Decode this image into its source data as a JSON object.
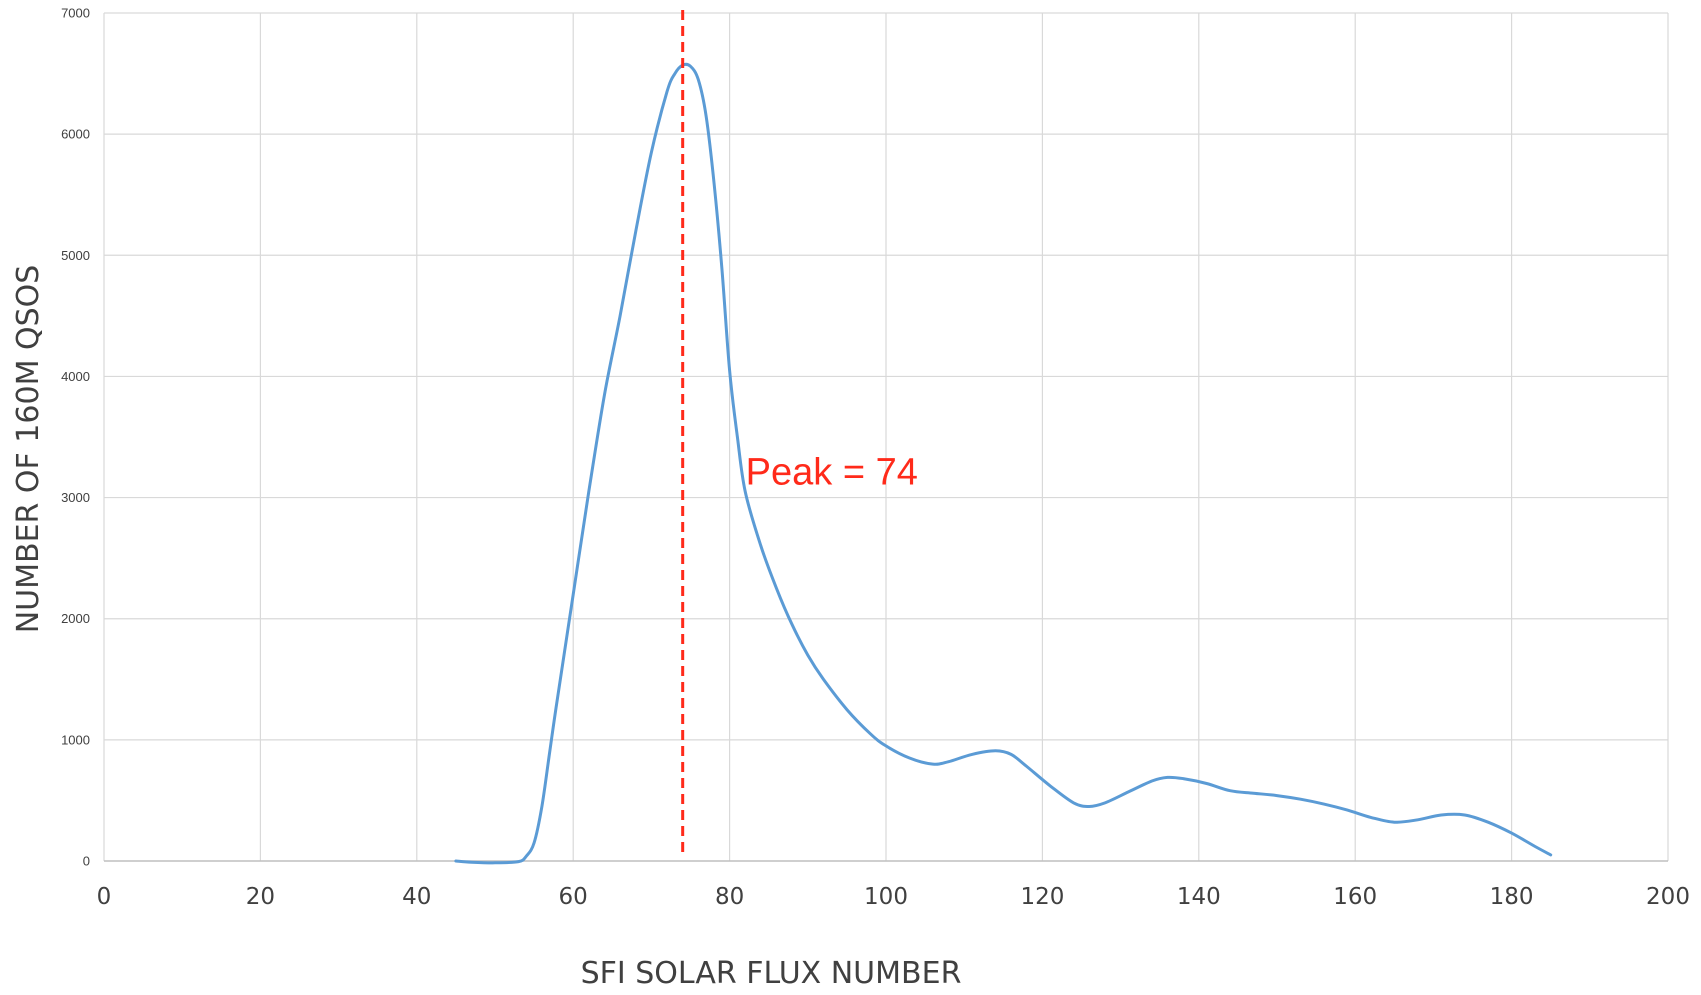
{
  "chart_data": {
    "type": "line",
    "title": "",
    "xlabel": "SFI SOLAR FLUX NUMBER",
    "ylabel": "NUMBER OF 160M QSOS",
    "xlim": [
      0,
      200
    ],
    "ylim": [
      0,
      7000
    ],
    "x_ticks": [
      0,
      20,
      40,
      60,
      80,
      100,
      120,
      140,
      160,
      180,
      200
    ],
    "y_ticks": [
      0,
      1000,
      2000,
      3000,
      4000,
      5000,
      6000,
      7000
    ],
    "grid": true,
    "legend": "none",
    "series": [
      {
        "color": "#5b9bd5",
        "x": [
          45,
          47,
          50,
          53,
          54,
          55,
          56,
          57,
          58,
          60,
          62,
          64,
          66,
          68,
          70,
          72,
          73,
          74,
          75,
          76,
          77,
          78,
          79,
          80,
          81,
          82,
          84,
          86,
          88,
          90,
          92,
          95,
          98,
          100,
          103,
          106,
          108,
          111,
          114,
          116,
          118,
          121,
          124,
          126,
          128,
          131,
          134,
          136,
          138,
          141,
          144,
          147,
          150,
          153,
          156,
          159,
          162,
          165,
          168,
          171,
          174,
          177,
          180,
          183,
          185
        ],
        "y": [
          0,
          -10,
          -15,
          -5,
          40,
          150,
          450,
          900,
          1350,
          2200,
          3050,
          3850,
          4500,
          5200,
          5850,
          6350,
          6500,
          6570,
          6560,
          6450,
          6150,
          5600,
          4900,
          4050,
          3500,
          3050,
          2600,
          2250,
          1950,
          1700,
          1500,
          1250,
          1050,
          950,
          850,
          800,
          820,
          880,
          910,
          880,
          780,
          620,
          480,
          450,
          480,
          570,
          660,
          690,
          680,
          640,
          580,
          560,
          540,
          510,
          470,
          420,
          360,
          320,
          340,
          380,
          380,
          320,
          230,
          120,
          50
        ]
      }
    ],
    "annotations": [
      {
        "text": "Peak = 74",
        "x": 74,
        "color": "#ff2a1a",
        "line_style": "dashed-vertical"
      }
    ]
  }
}
